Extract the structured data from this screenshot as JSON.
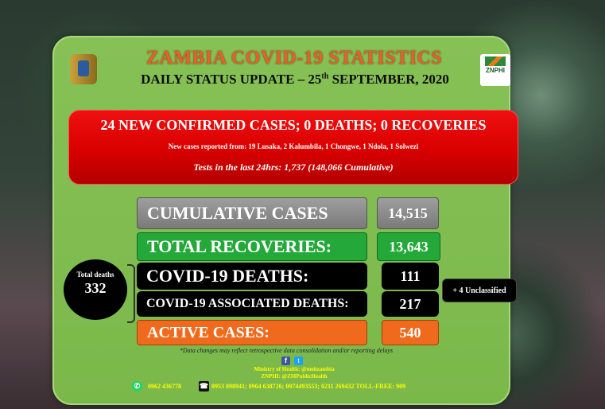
{
  "header": {
    "title": "ZAMBIA COVID-19 STATISTICS",
    "subtitle_pre": "DAILY STATUS UPDATE – 25",
    "subtitle_sup": "th",
    "subtitle_post": " SEPTEMBER, 2020",
    "logo_text": "ZNPHI"
  },
  "highlight": {
    "headline": "24 NEW CONFIRMED CASES; 0 DEATHS; 0 RECOVERIES",
    "details": "New cases reported from: 19 Lusaka, 2 Kalumbila, 1 Chongwe, 1 Ndola, 1 Solwezi",
    "tests": "Tests in the last 24hrs: 1,737 (148,066 Cumulative)"
  },
  "stats": {
    "cumulative_label": "CUMULATIVE CASES",
    "cumulative_value": "14,515",
    "recoveries_label": "TOTAL RECOVERIES:",
    "recoveries_value": "13,643",
    "deaths_label": "COVID-19 DEATHS:",
    "deaths_value": "111",
    "associated_label": "COVID-19 ASSOCIATED DEATHS:",
    "associated_value": "217",
    "active_label": "ACTIVE CASES:",
    "active_value": "540",
    "unclassified": "+ 4 Unclassified",
    "total_deaths_label": "Total deaths",
    "total_deaths_value": "332"
  },
  "footer": {
    "note": "*Data changes may reflect retrospective data consolidation and/or reporting delays",
    "moh_line": "Ministry of Health: @mohzambia",
    "znphi_line": "ZNPHI: @ZMPublicHealth",
    "whatsapp": "0962 436778",
    "phones": "0953 898941; 0964 638726; 0974493553; 0211 269432 TOLL-FREE: 909"
  },
  "colors": {
    "panel": "#7bb84a",
    "title": "#e8602a",
    "red": "#d80000",
    "recoveries": "#25a83a",
    "active": "#f06a1e"
  }
}
